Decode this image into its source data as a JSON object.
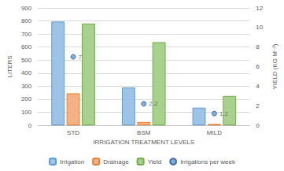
{
  "chart_data": {
    "type": "bar",
    "categories": [
      "STD",
      "BSM",
      "MILD"
    ],
    "x_label": "IRRIGATION TREATMENT LEVELS",
    "y_label": "LITERS",
    "y2_label": "YIELD (KG M⁻²)",
    "ylim": [
      0,
      900
    ],
    "yticks": [
      0,
      100,
      200,
      300,
      400,
      500,
      600,
      700,
      800,
      900
    ],
    "y2lim": [
      0,
      12
    ],
    "y2ticks": [
      0,
      2,
      4,
      6,
      8,
      10,
      12
    ],
    "grid": true,
    "legend": "bottom",
    "series": [
      {
        "name": "Irrigation",
        "type": "bar",
        "color": "#9dc3e6",
        "values": [
          795,
          290,
          135
        ]
      },
      {
        "name": "Drainage",
        "type": "bar",
        "color": "#f4b183",
        "values": [
          245,
          25,
          10
        ]
      },
      {
        "name": "Yield",
        "type": "bar",
        "color": "#a9d18e",
        "axis": "y2",
        "values": [
          10.4,
          8.5,
          3.0
        ]
      },
      {
        "name": "Irrigations per week",
        "type": "scatter",
        "color": "#5b9bd5",
        "marker": "circle",
        "axis": "y2",
        "data_labels": true,
        "values": [
          7,
          2.2,
          1.2
        ]
      }
    ]
  }
}
